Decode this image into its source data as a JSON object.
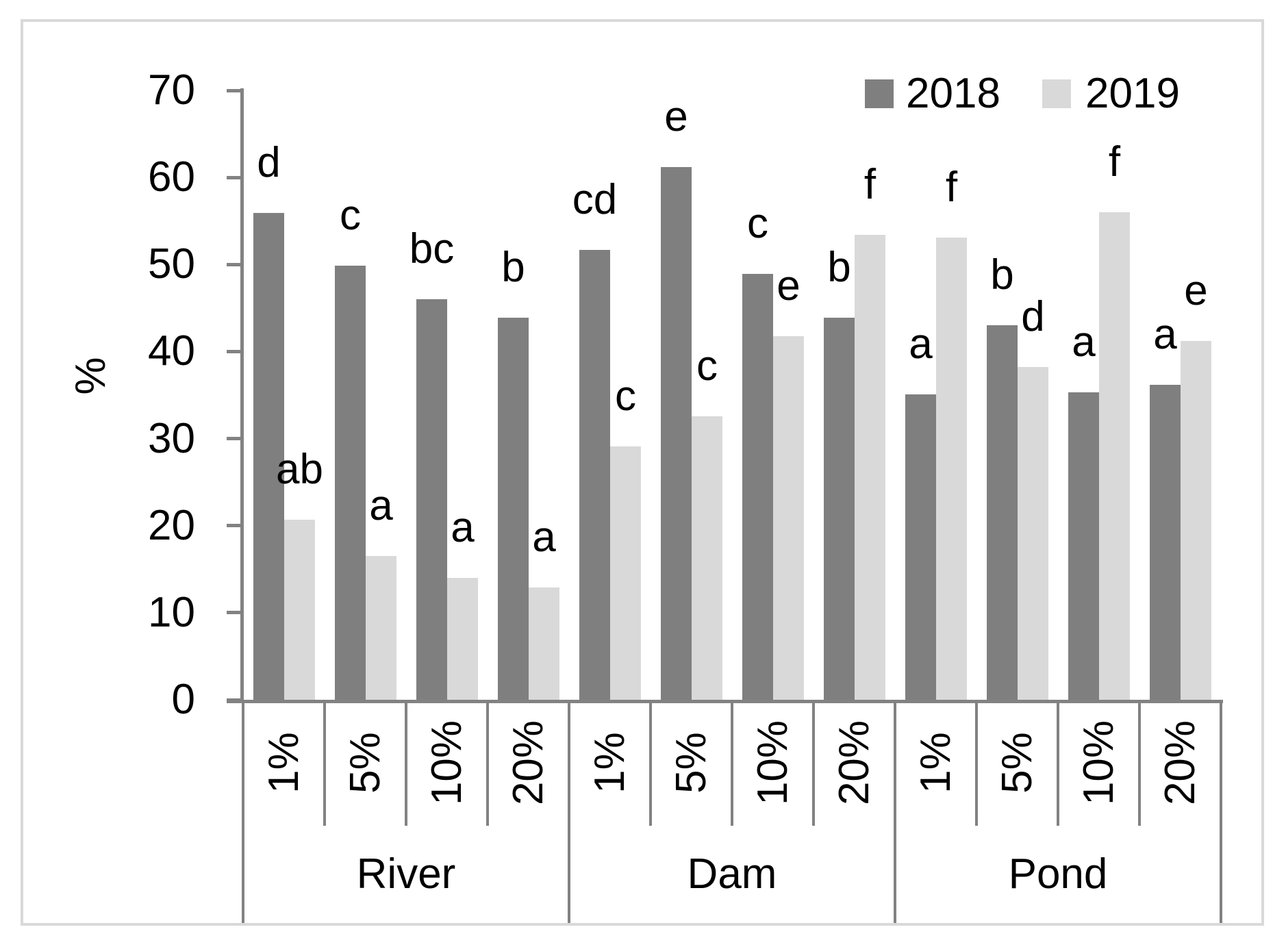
{
  "figure": {
    "background_color": "#ffffff",
    "border_color": "#d9d9d9",
    "axis_line_color": "#828282",
    "text_color": "#000000"
  },
  "legend": {
    "items": [
      {
        "label": "2018",
        "color": "#7f7f7f"
      },
      {
        "label": "2019",
        "color": "#d9d9d9"
      }
    ]
  },
  "chart_data": {
    "type": "bar",
    "title": "",
    "xlabel": "",
    "ylabel": "%",
    "ylim": [
      0,
      70
    ],
    "yticks": [
      0,
      10,
      20,
      30,
      40,
      50,
      60,
      70
    ],
    "grid": false,
    "legend_position": "top-right",
    "groups": [
      {
        "label": "River",
        "span": 4
      },
      {
        "label": "Dam",
        "span": 4
      },
      {
        "label": "Pond",
        "span": 4
      }
    ],
    "categories": [
      "1%",
      "5%",
      "10%",
      "20%",
      "1%",
      "5%",
      "10%",
      "20%",
      "1%",
      "5%",
      "10%",
      "20%"
    ],
    "series": [
      {
        "name": "2018",
        "color": "#7f7f7f",
        "values": [
          55.9,
          49.9,
          46.0,
          43.9,
          51.7,
          61.2,
          48.9,
          43.9,
          35.1,
          43.0,
          35.3,
          36.2
        ],
        "letters": [
          "d",
          "c",
          "bc",
          "b",
          "cd",
          "e",
          "c",
          "b",
          "a",
          "b",
          "a",
          "a"
        ]
      },
      {
        "name": "2019",
        "color": "#d9d9d9",
        "values": [
          20.7,
          16.5,
          14.0,
          12.9,
          29.1,
          32.6,
          41.8,
          53.4,
          53.1,
          38.2,
          56.0,
          41.2
        ],
        "letters": [
          "ab",
          "a",
          "a",
          "a",
          "c",
          "c",
          "e",
          "f",
          "f",
          "d",
          "f",
          "e"
        ]
      }
    ]
  }
}
